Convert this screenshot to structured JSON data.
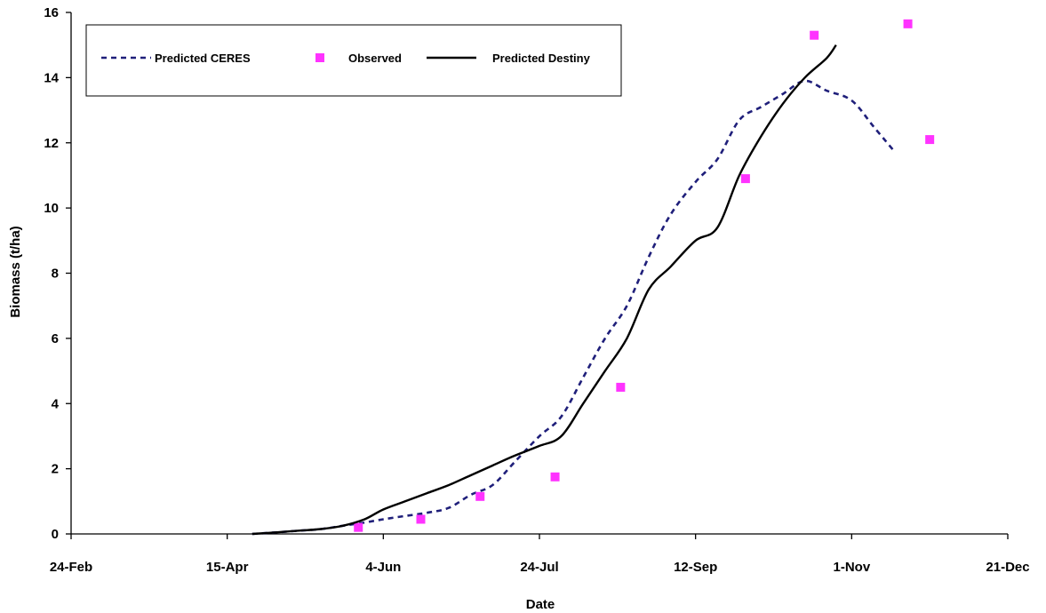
{
  "chart_data": {
    "type": "line",
    "xlabel": "Date",
    "ylabel": "Biomass (t/ha)",
    "ylim": [
      0,
      16
    ],
    "yticks": [
      0,
      2,
      4,
      6,
      8,
      10,
      12,
      14,
      16
    ],
    "xlim": [
      "24-Feb",
      "21-Dec"
    ],
    "xticks": [
      "24-Feb",
      "15-Apr",
      "4-Jun",
      "24-Jul",
      "12-Sep",
      "1-Nov",
      "21-Dec"
    ],
    "grid": false,
    "legend_position": "top-left",
    "series": [
      {
        "name": "Predicted CERES",
        "style": "dashed",
        "color": "#1f1f7a",
        "x": [
          "23-Apr",
          "1-May",
          "8-May",
          "15-May",
          "22-May",
          "29-May",
          "4-Jun",
          "11-Jun",
          "18-Jun",
          "25-Jun",
          "2-Jul",
          "9-Jul",
          "16-Jul",
          "24-Jul",
          "31-Jul",
          "7-Aug",
          "14-Aug",
          "21-Aug",
          "28-Aug",
          "4-Sep",
          "12-Sep",
          "19-Sep",
          "26-Sep",
          "3-Oct",
          "10-Oct",
          "17-Oct",
          "24-Oct",
          "1-Nov",
          "8-Nov",
          "15-Nov"
        ],
        "y": [
          0,
          0.05,
          0.1,
          0.15,
          0.25,
          0.35,
          0.45,
          0.55,
          0.65,
          0.8,
          1.2,
          1.5,
          2.2,
          3.0,
          3.6,
          4.8,
          6.0,
          7.0,
          8.5,
          9.8,
          10.8,
          11.5,
          12.7,
          13.1,
          13.5,
          13.9,
          13.6,
          13.3,
          12.5,
          11.7
        ]
      },
      {
        "name": "Observed",
        "style": "marker",
        "color": "#ff33ff",
        "x": [
          "27-May",
          "16-Jun",
          "5-Jul",
          "29-Jul",
          "19-Aug",
          "28-Sep",
          "20-Oct",
          "19-Nov",
          "26-Nov"
        ],
        "y": [
          0.2,
          0.45,
          1.15,
          1.75,
          4.5,
          10.9,
          15.3,
          15.65,
          12.1
        ]
      },
      {
        "name": "Predicted Destiny",
        "style": "solid",
        "color": "#000000",
        "x": [
          "23-Apr",
          "1-May",
          "8-May",
          "15-May",
          "22-May",
          "29-May",
          "4-Jun",
          "11-Jun",
          "18-Jun",
          "25-Jun",
          "2-Jul",
          "9-Jul",
          "16-Jul",
          "24-Jul",
          "31-Jul",
          "7-Aug",
          "14-Aug",
          "21-Aug",
          "28-Aug",
          "4-Sep",
          "12-Sep",
          "19-Sep",
          "26-Sep",
          "3-Oct",
          "10-Oct",
          "17-Oct",
          "24-Oct",
          "27-Oct"
        ],
        "y": [
          0,
          0.05,
          0.1,
          0.15,
          0.25,
          0.45,
          0.75,
          1.0,
          1.25,
          1.5,
          1.8,
          2.1,
          2.4,
          2.7,
          3.0,
          4.0,
          5.0,
          6.0,
          7.5,
          8.2,
          9.0,
          9.4,
          11.0,
          12.2,
          13.2,
          14.0,
          14.6,
          15.0
        ]
      }
    ]
  }
}
